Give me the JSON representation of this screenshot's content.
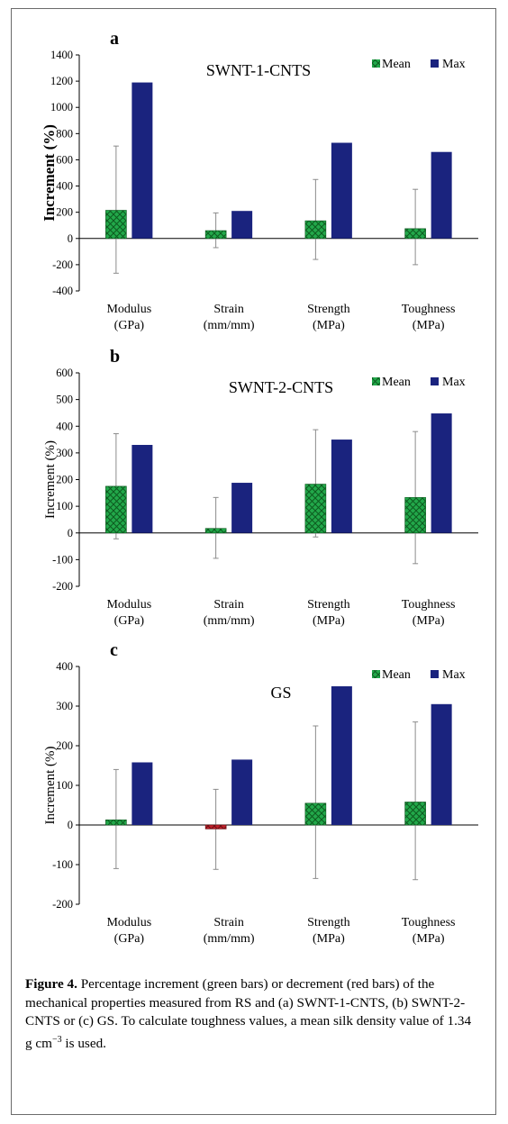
{
  "chart_data": [
    {
      "type": "bar",
      "panel_label": "a",
      "title": "SWNT-1-CNTS",
      "ylabel": "Increment (%)",
      "ylim": [
        -400,
        1400
      ],
      "yticks": [
        -400,
        -200,
        0,
        200,
        400,
        600,
        800,
        1000,
        1200,
        1400
      ],
      "categories": [
        {
          "line1": "Modulus",
          "line2": "(GPa)"
        },
        {
          "line1": "Strain",
          "line2": "(mm/mm)"
        },
        {
          "line1": "Strength",
          "line2": "(MPa)"
        },
        {
          "line1": "Toughness",
          "line2": "(MPa)"
        }
      ],
      "series": [
        {
          "name": "Mean",
          "values": [
            215,
            60,
            135,
            75
          ],
          "error_low": [
            -265,
            -70,
            -160,
            -200
          ],
          "error_high": [
            705,
            195,
            450,
            375
          ]
        },
        {
          "name": "Max",
          "values": [
            1190,
            210,
            730,
            660
          ]
        }
      ],
      "legend_position": "top-right"
    },
    {
      "type": "bar",
      "panel_label": "b",
      "title": "SWNT-2-CNTS",
      "ylabel": "Increment  (%)",
      "ylim": [
        -200,
        600
      ],
      "yticks": [
        -200,
        -100,
        0,
        100,
        200,
        300,
        400,
        500,
        600
      ],
      "categories": [
        {
          "line1": "Modulus",
          "line2": "(GPa)"
        },
        {
          "line1": "Strain",
          "line2": "(mm/mm)"
        },
        {
          "line1": "Strength",
          "line2": "(MPa)"
        },
        {
          "line1": "Toughness",
          "line2": "(MPa)"
        }
      ],
      "series": [
        {
          "name": "Mean",
          "values": [
            175,
            17,
            183,
            133
          ],
          "error_low": [
            -22,
            -95,
            -15,
            -115
          ],
          "error_high": [
            372,
            133,
            387,
            380
          ]
        },
        {
          "name": "Max",
          "values": [
            330,
            188,
            350,
            448
          ]
        }
      ],
      "legend_position": "top-right"
    },
    {
      "type": "bar",
      "panel_label": "c",
      "title": "GS",
      "ylabel": "Increment  (%)",
      "ylim": [
        -200,
        400
      ],
      "yticks": [
        -200,
        -100,
        0,
        100,
        200,
        300,
        400
      ],
      "categories": [
        {
          "line1": "Modulus",
          "line2": "(GPa)"
        },
        {
          "line1": "Strain",
          "line2": "(mm/mm)"
        },
        {
          "line1": "Strength",
          "line2": "(MPa)"
        },
        {
          "line1": "Toughness",
          "line2": "(MPa)"
        }
      ],
      "series": [
        {
          "name": "Mean",
          "values": [
            13,
            -10,
            55,
            58
          ],
          "error_low": [
            -110,
            -112,
            -135,
            -138
          ],
          "error_high": [
            140,
            90,
            250,
            260
          ]
        },
        {
          "name": "Max",
          "values": [
            158,
            165,
            350,
            305
          ]
        }
      ],
      "legend_position": "top-right"
    }
  ],
  "caption": {
    "label": "Figure 4.",
    "text": "Percentage increment (green bars) or decrement (red bars) of the mechanical properties measured from RS and (a) SWNT-1-CNTS, (b) SWNT-2-CNTS or (c) GS. To calculate toughness values, a mean silk density value of 1.34 g cm",
    "superscript": "−3",
    "text_end": " is used."
  },
  "colors": {
    "mean_fill": "#22a84a",
    "mean_hatch": "#0d5a1f",
    "decrement_fill": "#c0202a",
    "max_fill": "#1a237e",
    "error_bar": "#8c8c8c",
    "frame": "#6b6b6b"
  }
}
